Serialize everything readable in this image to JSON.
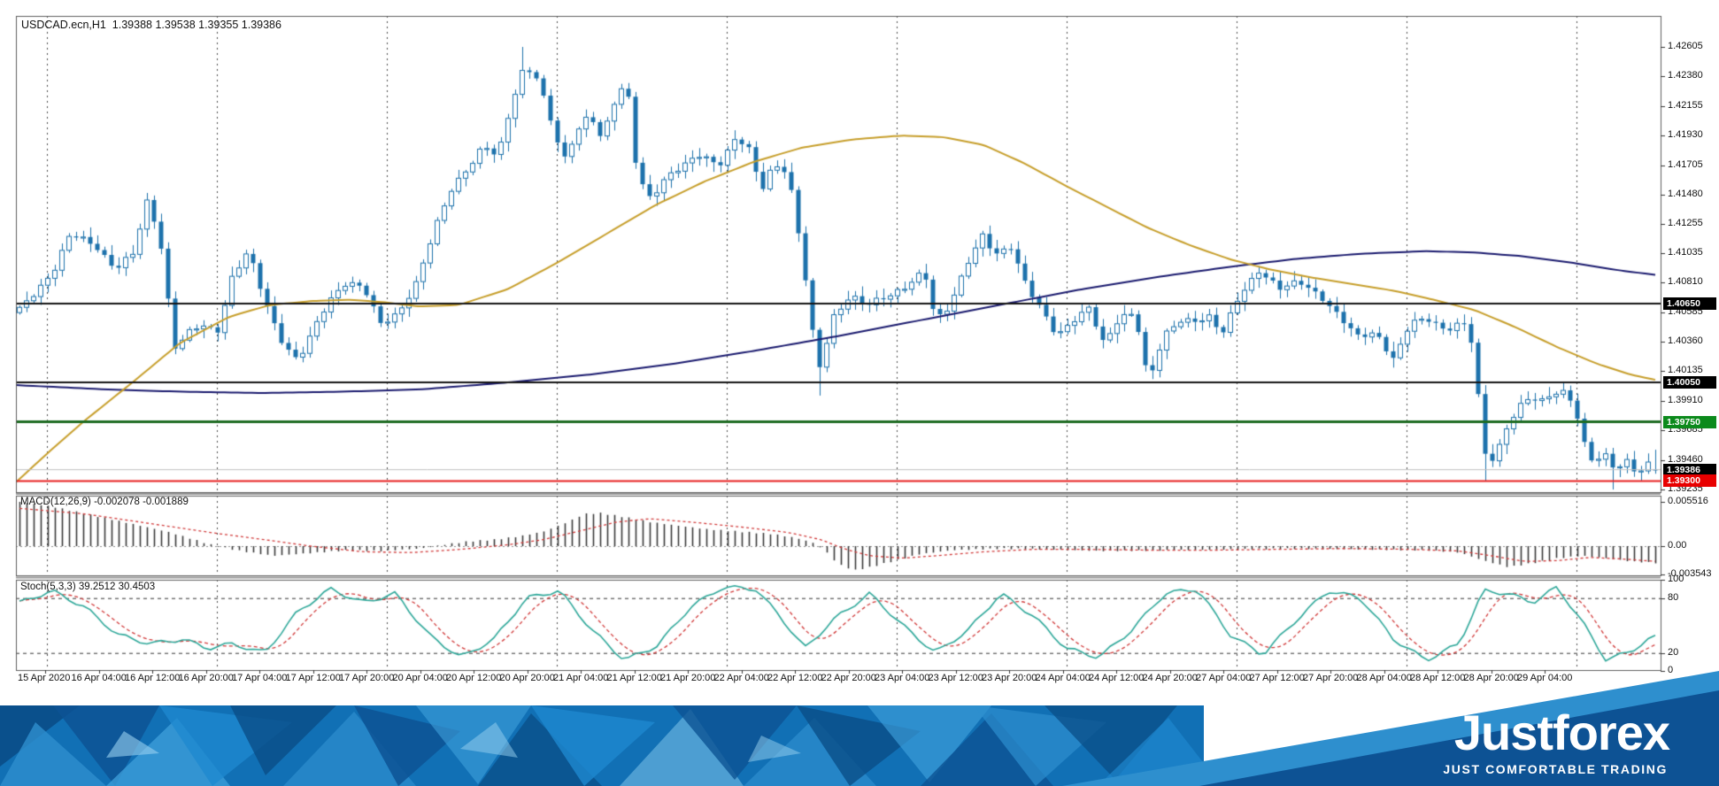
{
  "window": {
    "title_line": "USDCAD.ecn,H1  1.39388 1.39538 1.39355 1.39386",
    "symbol": "USDCAD.ecn",
    "timeframe": "H1"
  },
  "price_axis": {
    "ticks": [
      1.42605,
      1.4238,
      1.42155,
      1.4193,
      1.41705,
      1.4148,
      1.41255,
      1.41035,
      1.4081,
      1.40585,
      1.4036,
      1.40135,
      1.3991,
      1.39685,
      1.3946,
      1.39235
    ]
  },
  "levels": [
    {
      "price": 1.4065,
      "label": "1.40650",
      "line_color": "#141414",
      "badge_bg": "#000000",
      "badge_fg": "#ffffff",
      "width": 2
    },
    {
      "price": 1.4005,
      "label": "1.40050",
      "line_color": "#141414",
      "badge_bg": "#000000",
      "badge_fg": "#ffffff",
      "width": 2
    },
    {
      "price": 1.3975,
      "label": "1.39750",
      "line_color": "#1E6B22",
      "badge_bg": "#0C8A1C",
      "badge_fg": "#ffffff",
      "width": 3
    },
    {
      "price": 1.39386,
      "label": "1.39386",
      "line_color": "#c0c0c0",
      "badge_bg": "#000000",
      "badge_fg": "#ffffff",
      "width": 1
    },
    {
      "price": 1.393,
      "label": "1.39300",
      "line_color": "#E82020",
      "badge_bg": "#E80000",
      "badge_fg": "#ffffff",
      "width": 2
    }
  ],
  "indicators": {
    "macd": {
      "label": "MACD(12,26,9) -0.002078 -0.001889",
      "value": -0.002078,
      "signal": -0.001889,
      "axis_ticks": [
        {
          "text": "0.005516",
          "v": 0.005516
        },
        {
          "text": "0.00",
          "v": 0.0
        },
        {
          "text": "-0.003543",
          "v": -0.003543
        }
      ]
    },
    "stoch": {
      "label": "Stoch(5,3,3) 39.2512 30.4503",
      "k": 39.2512,
      "d": 30.4503,
      "axis_ticks": [
        {
          "text": "100",
          "v": 100
        },
        {
          "text": "80",
          "v": 80
        },
        {
          "text": "20",
          "v": 20
        },
        {
          "text": "0",
          "v": 0
        }
      ],
      "level_lines": [
        80,
        20
      ]
    }
  },
  "time_axis": {
    "labels": [
      "15 Apr 2020",
      "16 Apr 04:00",
      "16 Apr 12:00",
      "16 Apr 20:00",
      "17 Apr 04:00",
      "17 Apr 12:00",
      "17 Apr 20:00",
      "20 Apr 04:00",
      "20 Apr 12:00",
      "20 Apr 20:00",
      "21 Apr 04:00",
      "21 Apr 12:00",
      "21 Apr 20:00",
      "22 Apr 04:00",
      "22 Apr 12:00",
      "22 Apr 20:00",
      "23 Apr 04:00",
      "23 Apr 12:00",
      "23 Apr 20:00",
      "24 Apr 04:00",
      "24 Apr 12:00",
      "24 Apr 20:00",
      "27 Apr 04:00",
      "27 Apr 12:00",
      "27 Apr 20:00",
      "28 Apr 04:00",
      "28 Apr 12:00",
      "28 Apr 20:00",
      "29 Apr 04:00"
    ]
  },
  "chart_data": {
    "type": "candlestick",
    "symbol": "USDCAD",
    "timeframe": "H1",
    "bars": 232,
    "ylim": [
      1.39215,
      1.42841
    ],
    "grid": "daily-vertical-dashed",
    "ohlc_current": {
      "open": 1.39388,
      "high": 1.39538,
      "low": 1.39355,
      "close": 1.39386
    },
    "close_anchors": [
      [
        0,
        1.406
      ],
      [
        0.0206,
        1.409
      ],
      [
        0.0314,
        1.4118
      ],
      [
        0.0477,
        1.4108
      ],
      [
        0.0585,
        1.4092
      ],
      [
        0.0693,
        1.4102
      ],
      [
        0.078,
        1.4142
      ],
      [
        0.0856,
        1.4118
      ],
      [
        0.0948,
        1.4032
      ],
      [
        0.1029,
        1.4042
      ],
      [
        0.1116,
        1.4048
      ],
      [
        0.1208,
        1.4043
      ],
      [
        0.13,
        1.4086
      ],
      [
        0.1398,
        1.4105
      ],
      [
        0.1484,
        1.4072
      ],
      [
        0.1587,
        1.404
      ],
      [
        0.1701,
        1.4022
      ],
      [
        0.1788,
        1.4042
      ],
      [
        0.189,
        1.4066
      ],
      [
        0.2004,
        1.4083
      ],
      [
        0.2107,
        1.4077
      ],
      [
        0.221,
        1.4048
      ],
      [
        0.2318,
        1.4058
      ],
      [
        0.2427,
        1.4082
      ],
      [
        0.2535,
        1.412
      ],
      [
        0.2643,
        1.4152
      ],
      [
        0.2746,
        1.417
      ],
      [
        0.2838,
        1.4186
      ],
      [
        0.2925,
        1.4176
      ],
      [
        0.3012,
        1.4218
      ],
      [
        0.3088,
        1.4247
      ],
      [
        0.3163,
        1.4238
      ],
      [
        0.3245,
        1.4206
      ],
      [
        0.3326,
        1.4172
      ],
      [
        0.3407,
        1.4196
      ],
      [
        0.3489,
        1.4211
      ],
      [
        0.3559,
        1.4191
      ],
      [
        0.3646,
        1.4221
      ],
      [
        0.3711,
        1.4233
      ],
      [
        0.3776,
        1.4163
      ],
      [
        0.3857,
        1.4146
      ],
      [
        0.3949,
        1.4161
      ],
      [
        0.4058,
        1.4169
      ],
      [
        0.4166,
        1.4179
      ],
      [
        0.4274,
        1.4171
      ],
      [
        0.4383,
        1.4191
      ],
      [
        0.4464,
        1.4181
      ],
      [
        0.4534,
        1.4151
      ],
      [
        0.461,
        1.4172
      ],
      [
        0.4697,
        1.4166
      ],
      [
        0.4789,
        1.4098
      ],
      [
        0.4881,
        1.4012
      ],
      [
        0.4978,
        1.4056
      ],
      [
        0.5076,
        1.4071
      ],
      [
        0.5184,
        1.4063
      ],
      [
        0.5303,
        1.4071
      ],
      [
        0.5423,
        1.4079
      ],
      [
        0.5531,
        1.4089
      ],
      [
        0.5601,
        1.4051
      ],
      [
        0.5683,
        1.4063
      ],
      [
        0.5791,
        1.4096
      ],
      [
        0.5888,
        1.4116
      ],
      [
        0.5964,
        1.4101
      ],
      [
        0.6062,
        1.4109
      ],
      [
        0.6159,
        1.4079
      ],
      [
        0.6251,
        1.4059
      ],
      [
        0.6343,
        1.4039
      ],
      [
        0.6441,
        1.4053
      ],
      [
        0.6538,
        1.4063
      ],
      [
        0.663,
        1.4033
      ],
      [
        0.6723,
        1.4053
      ],
      [
        0.682,
        1.4059
      ],
      [
        0.6901,
        1.4006
      ],
      [
        0.6993,
        1.4039
      ],
      [
        0.7091,
        1.4051
      ],
      [
        0.7199,
        1.4053
      ],
      [
        0.728,
        1.4056
      ],
      [
        0.7351,
        1.4041
      ],
      [
        0.7454,
        1.4069
      ],
      [
        0.7578,
        1.4091
      ],
      [
        0.7714,
        1.4076
      ],
      [
        0.7822,
        1.4081
      ],
      [
        0.7958,
        1.4071
      ],
      [
        0.8066,
        1.4056
      ],
      [
        0.8174,
        1.4039
      ],
      [
        0.8294,
        1.4043
      ],
      [
        0.8402,
        1.4023
      ],
      [
        0.85,
        1.4049
      ],
      [
        0.8608,
        1.4053
      ],
      [
        0.8716,
        1.4046
      ],
      [
        0.8825,
        1.4051
      ],
      [
        0.889,
        1.4031
      ],
      [
        0.8949,
        1.3951
      ],
      [
        0.9014,
        1.3946
      ],
      [
        0.9096,
        1.3973
      ],
      [
        0.9161,
        1.3986
      ],
      [
        0.9231,
        1.3993
      ],
      [
        0.9301,
        1.3989
      ],
      [
        0.9366,
        1.3996
      ],
      [
        0.9431,
        1.3999
      ],
      [
        0.9502,
        1.3991
      ],
      [
        0.9556,
        1.3961
      ],
      [
        0.9621,
        1.3943
      ],
      [
        0.9691,
        1.3949
      ],
      [
        0.9756,
        1.3939
      ],
      [
        0.9827,
        1.3946
      ],
      [
        0.9897,
        1.3936
      ],
      [
        0.9951,
        1.3943
      ],
      [
        1,
        1.39386
      ]
    ],
    "wick_overrides": [
      {
        "t": 0.3088,
        "high": 1.42605
      },
      {
        "t": 0.4881,
        "low": 1.3995
      },
      {
        "t": 0.8949,
        "low": 1.393
      },
      {
        "t": 0.9756,
        "low": 1.39235
      }
    ],
    "ma_gold_anchors": [
      [
        0,
        1.3929
      ],
      [
        0.02,
        1.3952
      ],
      [
        0.042,
        1.3976
      ],
      [
        0.072,
        1.4006
      ],
      [
        0.1,
        1.4035
      ],
      [
        0.13,
        1.4055
      ],
      [
        0.155,
        1.4064
      ],
      [
        0.18,
        1.4067
      ],
      [
        0.205,
        1.4068
      ],
      [
        0.225,
        1.4066
      ],
      [
        0.245,
        1.4063
      ],
      [
        0.27,
        1.4064
      ],
      [
        0.3,
        1.4076
      ],
      [
        0.33,
        1.4096
      ],
      [
        0.36,
        1.4118
      ],
      [
        0.39,
        1.414
      ],
      [
        0.42,
        1.4158
      ],
      [
        0.45,
        1.4173
      ],
      [
        0.48,
        1.4184
      ],
      [
        0.51,
        1.419
      ],
      [
        0.54,
        1.4193
      ],
      [
        0.565,
        1.4192
      ],
      [
        0.59,
        1.4186
      ],
      [
        0.615,
        1.4172
      ],
      [
        0.64,
        1.4155
      ],
      [
        0.665,
        1.4139
      ],
      [
        0.69,
        1.4123
      ],
      [
        0.715,
        1.411
      ],
      [
        0.74,
        1.4099
      ],
      [
        0.765,
        1.4091
      ],
      [
        0.79,
        1.4085
      ],
      [
        0.815,
        1.408
      ],
      [
        0.84,
        1.4075
      ],
      [
        0.865,
        1.4068
      ],
      [
        0.89,
        1.406
      ],
      [
        0.915,
        1.4047
      ],
      [
        0.94,
        1.4032
      ],
      [
        0.965,
        1.4019
      ],
      [
        0.985,
        1.4011
      ],
      [
        1,
        1.4007
      ]
    ],
    "ma_navy_anchors": [
      [
        0,
        1.4003
      ],
      [
        0.05,
        1.4
      ],
      [
        0.1,
        1.3998
      ],
      [
        0.15,
        1.3997
      ],
      [
        0.2,
        1.3998
      ],
      [
        0.25,
        1.4
      ],
      [
        0.3,
        1.4005
      ],
      [
        0.35,
        1.4011
      ],
      [
        0.4,
        1.4019
      ],
      [
        0.45,
        1.4029
      ],
      [
        0.5,
        1.404
      ],
      [
        0.55,
        1.4052
      ],
      [
        0.6,
        1.4064
      ],
      [
        0.65,
        1.4076
      ],
      [
        0.7,
        1.4086
      ],
      [
        0.74,
        1.4093
      ],
      [
        0.78,
        1.4099
      ],
      [
        0.82,
        1.4103
      ],
      [
        0.86,
        1.4105
      ],
      [
        0.89,
        1.4104
      ],
      [
        0.92,
        1.4101
      ],
      [
        0.95,
        1.4096
      ],
      [
        0.98,
        1.409
      ],
      [
        1,
        1.4087
      ]
    ],
    "macd_hist_anchors": [
      [
        0,
        0.0055
      ],
      [
        0.02,
        0.0049
      ],
      [
        0.045,
        0.0038
      ],
      [
        0.07,
        0.0027
      ],
      [
        0.09,
        0.0018
      ],
      [
        0.105,
        0.0009
      ],
      [
        0.118,
        0.0001
      ],
      [
        0.135,
        -0.0006
      ],
      [
        0.155,
        -0.0012
      ],
      [
        0.175,
        -0.0009
      ],
      [
        0.2,
        -0.0005
      ],
      [
        0.22,
        -0.0006
      ],
      [
        0.245,
        -0.0003
      ],
      [
        0.26,
        0.0002
      ],
      [
        0.275,
        0.0006
      ],
      [
        0.29,
        0.0008
      ],
      [
        0.305,
        0.0012
      ],
      [
        0.32,
        0.0018
      ],
      [
        0.335,
        0.003
      ],
      [
        0.345,
        0.004
      ],
      [
        0.355,
        0.0041
      ],
      [
        0.37,
        0.0036
      ],
      [
        0.385,
        0.003
      ],
      [
        0.4,
        0.0026
      ],
      [
        0.42,
        0.0021
      ],
      [
        0.44,
        0.0018
      ],
      [
        0.46,
        0.0015
      ],
      [
        0.475,
        0.001
      ],
      [
        0.485,
        0.0004
      ],
      [
        0.492,
        -0.0005
      ],
      [
        0.5,
        -0.0022
      ],
      [
        0.51,
        -0.003
      ],
      [
        0.52,
        -0.0026
      ],
      [
        0.535,
        -0.0018
      ],
      [
        0.55,
        -0.001
      ],
      [
        0.57,
        -0.0005
      ],
      [
        0.6,
        -0.0003
      ],
      [
        0.63,
        -0.0004
      ],
      [
        0.66,
        -0.0006
      ],
      [
        0.7,
        -0.0005
      ],
      [
        0.74,
        -0.0004
      ],
      [
        0.78,
        -0.0003
      ],
      [
        0.82,
        -0.0004
      ],
      [
        0.86,
        -0.0005
      ],
      [
        0.88,
        -0.0008
      ],
      [
        0.895,
        -0.0018
      ],
      [
        0.91,
        -0.0026
      ],
      [
        0.925,
        -0.0021
      ],
      [
        0.94,
        -0.0015
      ],
      [
        0.955,
        -0.0012
      ],
      [
        0.97,
        -0.0015
      ],
      [
        0.985,
        -0.0019
      ],
      [
        1,
        -0.00208
      ]
    ],
    "macd_signal_anchors": [
      [
        0,
        0.0047
      ],
      [
        0.04,
        0.004
      ],
      [
        0.08,
        0.0028
      ],
      [
        0.12,
        0.0016
      ],
      [
        0.15,
        0.0008
      ],
      [
        0.178,
        0.0
      ],
      [
        0.21,
        -0.0007
      ],
      [
        0.24,
        -0.0008
      ],
      [
        0.27,
        -0.0004
      ],
      [
        0.3,
        0.0002
      ],
      [
        0.32,
        0.0008
      ],
      [
        0.345,
        0.002
      ],
      [
        0.365,
        0.003
      ],
      [
        0.385,
        0.0034
      ],
      [
        0.41,
        0.003
      ],
      [
        0.44,
        0.0024
      ],
      [
        0.47,
        0.0017
      ],
      [
        0.49,
        0.0008
      ],
      [
        0.505,
        -0.0004
      ],
      [
        0.52,
        -0.0012
      ],
      [
        0.54,
        -0.0015
      ],
      [
        0.56,
        -0.0012
      ],
      [
        0.59,
        -0.0007
      ],
      [
        0.62,
        -0.0004
      ],
      [
        0.65,
        -0.0004
      ],
      [
        0.69,
        -0.0005
      ],
      [
        0.73,
        -0.0005
      ],
      [
        0.77,
        -0.0004
      ],
      [
        0.81,
        -0.0003
      ],
      [
        0.85,
        -0.0004
      ],
      [
        0.88,
        -0.0006
      ],
      [
        0.9,
        -0.0012
      ],
      [
        0.92,
        -0.0019
      ],
      [
        0.94,
        -0.0018
      ],
      [
        0.96,
        -0.0014
      ],
      [
        0.98,
        -0.0016
      ],
      [
        1,
        -0.00189
      ]
    ],
    "stoch_k_anchors": [
      [
        0,
        75
      ],
      [
        0.02,
        88
      ],
      [
        0.04,
        70
      ],
      [
        0.06,
        40
      ],
      [
        0.08,
        30
      ],
      [
        0.1,
        35
      ],
      [
        0.115,
        25
      ],
      [
        0.13,
        30
      ],
      [
        0.15,
        20
      ],
      [
        0.17,
        65
      ],
      [
        0.19,
        90
      ],
      [
        0.21,
        75
      ],
      [
        0.23,
        85
      ],
      [
        0.25,
        40
      ],
      [
        0.27,
        15
      ],
      [
        0.29,
        35
      ],
      [
        0.31,
        80
      ],
      [
        0.33,
        88
      ],
      [
        0.35,
        45
      ],
      [
        0.37,
        12
      ],
      [
        0.39,
        28
      ],
      [
        0.41,
        70
      ],
      [
        0.43,
        92
      ],
      [
        0.45,
        90
      ],
      [
        0.465,
        60
      ],
      [
        0.48,
        25
      ],
      [
        0.5,
        60
      ],
      [
        0.52,
        85
      ],
      [
        0.54,
        50
      ],
      [
        0.56,
        20
      ],
      [
        0.58,
        45
      ],
      [
        0.6,
        85
      ],
      [
        0.62,
        60
      ],
      [
        0.64,
        25
      ],
      [
        0.66,
        15
      ],
      [
        0.68,
        45
      ],
      [
        0.7,
        85
      ],
      [
        0.72,
        90
      ],
      [
        0.74,
        40
      ],
      [
        0.76,
        18
      ],
      [
        0.78,
        55
      ],
      [
        0.8,
        88
      ],
      [
        0.82,
        80
      ],
      [
        0.84,
        35
      ],
      [
        0.86,
        12
      ],
      [
        0.88,
        30
      ],
      [
        0.895,
        88
      ],
      [
        0.91,
        85
      ],
      [
        0.925,
        75
      ],
      [
        0.94,
        92
      ],
      [
        0.955,
        55
      ],
      [
        0.97,
        12
      ],
      [
        0.985,
        22
      ],
      [
        1,
        39.25
      ]
    ],
    "colors": {
      "candle_blue": "#1D72AC",
      "bull_fill": "#ffffff",
      "ma_gold": "#C79F2C",
      "ma_navy": "#1B1B6F",
      "macd_bar": "#3a3a3a",
      "macd_signal": "#D23B3B",
      "stoch_k": "#2FA89A",
      "stoch_d": "#D23B3B",
      "grid": "#4a4a4a",
      "pane_border": "#5f5f5f"
    }
  },
  "banner": {
    "brand": "Justforex",
    "tagline": "JUST COMFORTABLE TRADING",
    "colors": {
      "base": "#1170B5",
      "dark": "#0D5294",
      "mid": "#2E8FCE",
      "deep": "#0A4D87",
      "bright": "#1E88CF",
      "light": "#3FA0DC",
      "lighter": "#7FC4EA",
      "highlight": "#9AD1F0"
    }
  }
}
